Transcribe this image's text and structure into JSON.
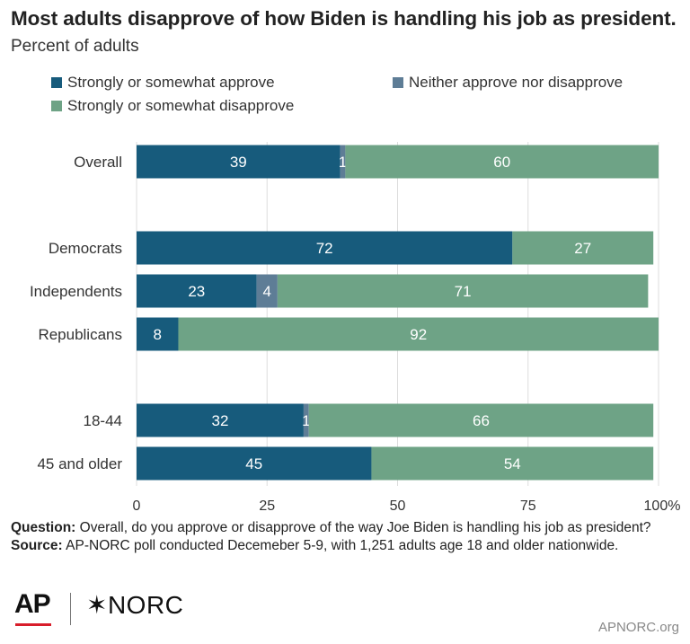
{
  "header": {
    "title": "Most adults disapprove of how Biden is handling his job as president.",
    "subtitle": "Percent of adults"
  },
  "colors": {
    "approve": "#175b7c",
    "neither": "#5e7d96",
    "disapprove": "#6ea386",
    "grid": "#dddddd",
    "text": "#222222"
  },
  "chart_data": {
    "type": "bar",
    "orientation": "horizontal",
    "stacked": true,
    "categories": [
      "Overall",
      "Democrats",
      "Independents",
      "Republicans",
      "18-44",
      "45 and older"
    ],
    "groups": [
      [
        0
      ],
      [
        1,
        2,
        3
      ],
      [
        4,
        5
      ]
    ],
    "series": [
      {
        "name": "Strongly or somewhat approve",
        "values": [
          39,
          72,
          23,
          8,
          32,
          45
        ]
      },
      {
        "name": "Neither approve nor disapprove",
        "values": [
          1,
          0,
          4,
          0,
          1,
          0
        ]
      },
      {
        "name": "Strongly or somewhat disapprove",
        "values": [
          60,
          27,
          71,
          92,
          66,
          54
        ]
      }
    ],
    "xlim": [
      0,
      100
    ],
    "xticks": [
      "0",
      "25",
      "50",
      "75",
      "100%"
    ],
    "grid": true,
    "legend_position": "top"
  },
  "footer": {
    "question_label": "Question:",
    "question_text": "Overall, do you approve or disapprove of the way Joe Biden is handling his job as president?",
    "source_label": "Source:",
    "source_text": "AP-NORC poll conducted Decemeber 5-9, with 1,251 adults age 18 and older nationwide.",
    "logo_ap": "AP",
    "logo_norc": "✶NORC",
    "site": "APNORC.org"
  }
}
